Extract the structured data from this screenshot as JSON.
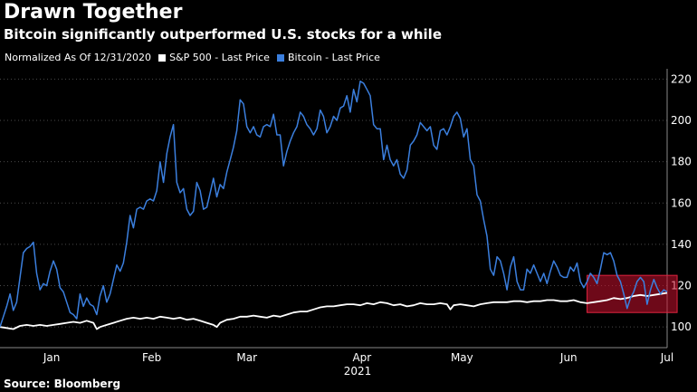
{
  "header": {
    "title": "Drawn Together",
    "subtitle": "Bitcoin significantly outperformed U.S. stocks for a while"
  },
  "legend": {
    "note": "Normalized As Of 12/31/2020",
    "items": [
      {
        "label": "S&P 500 - Last Price",
        "color": "#ffffff"
      },
      {
        "label": "Bitcoin - Last Price",
        "color": "#3b7fde"
      }
    ]
  },
  "footer": {
    "source": "Source: Bloomberg"
  },
  "chart_data": {
    "type": "line",
    "title": "Drawn Together",
    "subtitle": "Bitcoin significantly outperformed U.S. stocks for a while",
    "xlabel": "2021",
    "ylabel": "",
    "ylim": [
      90,
      225
    ],
    "xlim": [
      0,
      200
    ],
    "y_ticks": [
      100,
      120,
      140,
      160,
      180,
      200,
      220
    ],
    "x_ticks": [
      {
        "x": 15.5,
        "label": "Jan"
      },
      {
        "x": 45.5,
        "label": "Feb"
      },
      {
        "x": 74,
        "label": "Mar"
      },
      {
        "x": 108.5,
        "label": "Apr"
      },
      {
        "x": 138.5,
        "label": "May"
      },
      {
        "x": 170.5,
        "label": "Jun"
      },
      {
        "x": 200,
        "label": "Jul"
      }
    ],
    "x_group_label": "2021",
    "grid": "horizontal dotted",
    "highlight": {
      "x_start": 176,
      "x_end": 203,
      "y_start": 107,
      "y_end": 125,
      "color": "#c8102e"
    },
    "series": [
      {
        "name": "S&P 500 - Last Price",
        "color": "#ffffff",
        "points": [
          [
            0,
            100
          ],
          [
            2,
            99.5
          ],
          [
            4,
            99
          ],
          [
            6,
            100.5
          ],
          [
            8,
            101
          ],
          [
            10,
            100.5
          ],
          [
            12,
            101
          ],
          [
            14,
            100.5
          ],
          [
            16,
            101
          ],
          [
            18,
            101.5
          ],
          [
            20,
            102
          ],
          [
            22,
            102.5
          ],
          [
            24,
            102
          ],
          [
            26,
            103
          ],
          [
            28,
            102
          ],
          [
            29,
            99
          ],
          [
            30,
            100
          ],
          [
            32,
            101
          ],
          [
            34,
            102
          ],
          [
            36,
            103
          ],
          [
            38,
            104
          ],
          [
            40,
            104.5
          ],
          [
            42,
            104
          ],
          [
            44,
            104.5
          ],
          [
            46,
            104
          ],
          [
            48,
            105
          ],
          [
            50,
            104.5
          ],
          [
            52,
            104
          ],
          [
            54,
            104.5
          ],
          [
            56,
            103.5
          ],
          [
            58,
            104
          ],
          [
            60,
            103
          ],
          [
            62,
            102
          ],
          [
            64,
            101
          ],
          [
            65,
            100
          ],
          [
            66,
            102
          ],
          [
            68,
            103.5
          ],
          [
            70,
            104
          ],
          [
            72,
            105
          ],
          [
            74,
            105
          ],
          [
            76,
            105.5
          ],
          [
            78,
            105
          ],
          [
            80,
            104.5
          ],
          [
            82,
            105.5
          ],
          [
            84,
            105
          ],
          [
            86,
            106
          ],
          [
            88,
            107
          ],
          [
            90,
            107.5
          ],
          [
            92,
            107.5
          ],
          [
            94,
            108.5
          ],
          [
            96,
            109.5
          ],
          [
            98,
            110
          ],
          [
            100,
            110
          ],
          [
            102,
            110.5
          ],
          [
            104,
            111
          ],
          [
            106,
            111
          ],
          [
            108,
            110.5
          ],
          [
            110,
            111.5
          ],
          [
            112,
            111
          ],
          [
            114,
            112
          ],
          [
            116,
            111.5
          ],
          [
            118,
            110.5
          ],
          [
            120,
            111
          ],
          [
            122,
            110
          ],
          [
            124,
            110.5
          ],
          [
            126,
            111.5
          ],
          [
            128,
            111
          ],
          [
            130,
            111
          ],
          [
            132,
            111.5
          ],
          [
            134,
            111
          ],
          [
            135,
            108.5
          ],
          [
            136,
            110.5
          ],
          [
            138,
            111
          ],
          [
            140,
            110.5
          ],
          [
            142,
            110
          ],
          [
            144,
            111
          ],
          [
            146,
            111.5
          ],
          [
            148,
            112
          ],
          [
            150,
            112
          ],
          [
            152,
            112
          ],
          [
            154,
            112.5
          ],
          [
            156,
            112.5
          ],
          [
            158,
            112
          ],
          [
            160,
            112.5
          ],
          [
            162,
            112.5
          ],
          [
            164,
            113
          ],
          [
            166,
            113
          ],
          [
            168,
            112.5
          ],
          [
            170,
            112.5
          ],
          [
            172,
            113
          ],
          [
            174,
            112
          ],
          [
            176,
            111.5
          ],
          [
            178,
            112
          ],
          [
            180,
            112.5
          ],
          [
            182,
            113
          ],
          [
            184,
            114
          ],
          [
            186,
            113.5
          ],
          [
            188,
            114
          ],
          [
            190,
            115
          ],
          [
            192,
            115.5
          ],
          [
            194,
            115
          ],
          [
            196,
            115.5
          ],
          [
            198,
            116
          ],
          [
            200,
            116.5
          ]
        ]
      },
      {
        "name": "Bitcoin - Last Price",
        "color": "#3b7fde",
        "points": [
          [
            0,
            100
          ],
          [
            1,
            105
          ],
          [
            2,
            110
          ],
          [
            3,
            116
          ],
          [
            4,
            108
          ],
          [
            5,
            112
          ],
          [
            6,
            124
          ],
          [
            7,
            136
          ],
          [
            8,
            138
          ],
          [
            9,
            139
          ],
          [
            10,
            141
          ],
          [
            11,
            126
          ],
          [
            12,
            118
          ],
          [
            13,
            121
          ],
          [
            14,
            120
          ],
          [
            15,
            127
          ],
          [
            16,
            132
          ],
          [
            17,
            128
          ],
          [
            18,
            119
          ],
          [
            19,
            117
          ],
          [
            20,
            112
          ],
          [
            21,
            107
          ],
          [
            22,
            106
          ],
          [
            23,
            104
          ],
          [
            24,
            116
          ],
          [
            25,
            110
          ],
          [
            26,
            114
          ],
          [
            27,
            111
          ],
          [
            28,
            110
          ],
          [
            29,
            106
          ],
          [
            30,
            115
          ],
          [
            31,
            120
          ],
          [
            32,
            112
          ],
          [
            33,
            116
          ],
          [
            34,
            123
          ],
          [
            35,
            130
          ],
          [
            36,
            127
          ],
          [
            37,
            131
          ],
          [
            38,
            141
          ],
          [
            39,
            154
          ],
          [
            40,
            148
          ],
          [
            41,
            157
          ],
          [
            42,
            158
          ],
          [
            43,
            157
          ],
          [
            44,
            161
          ],
          [
            45,
            162
          ],
          [
            46,
            161
          ],
          [
            47,
            166
          ],
          [
            48,
            180
          ],
          [
            49,
            170
          ],
          [
            50,
            184
          ],
          [
            51,
            192
          ],
          [
            52,
            198
          ],
          [
            53,
            170
          ],
          [
            54,
            165
          ],
          [
            55,
            167
          ],
          [
            56,
            157
          ],
          [
            57,
            154
          ],
          [
            58,
            156
          ],
          [
            59,
            170
          ],
          [
            60,
            166
          ],
          [
            61,
            157
          ],
          [
            62,
            158
          ],
          [
            63,
            165
          ],
          [
            64,
            172
          ],
          [
            65,
            163
          ],
          [
            66,
            169
          ],
          [
            67,
            167
          ],
          [
            68,
            175
          ],
          [
            69,
            181
          ],
          [
            70,
            187
          ],
          [
            71,
            195
          ],
          [
            72,
            210
          ],
          [
            73,
            208
          ],
          [
            74,
            197
          ],
          [
            75,
            194
          ],
          [
            76,
            197
          ],
          [
            77,
            193
          ],
          [
            78,
            192
          ],
          [
            79,
            197
          ],
          [
            80,
            198
          ],
          [
            81,
            197
          ],
          [
            82,
            203
          ],
          [
            83,
            193
          ],
          [
            84,
            193
          ],
          [
            85,
            178
          ],
          [
            86,
            185
          ],
          [
            87,
            190
          ],
          [
            88,
            194
          ],
          [
            89,
            197
          ],
          [
            90,
            204
          ],
          [
            91,
            202
          ],
          [
            92,
            198
          ],
          [
            93,
            196
          ],
          [
            94,
            193
          ],
          [
            95,
            196
          ],
          [
            96,
            205
          ],
          [
            97,
            202
          ],
          [
            98,
            194
          ],
          [
            99,
            197
          ],
          [
            100,
            202
          ],
          [
            101,
            200
          ],
          [
            102,
            206
          ],
          [
            103,
            207
          ],
          [
            104,
            212
          ],
          [
            105,
            204
          ],
          [
            106,
            215
          ],
          [
            107,
            209
          ],
          [
            108,
            219
          ],
          [
            109,
            218
          ],
          [
            110,
            215
          ],
          [
            111,
            212
          ],
          [
            112,
            198
          ],
          [
            113,
            196
          ],
          [
            114,
            196
          ],
          [
            115,
            181
          ],
          [
            116,
            188
          ],
          [
            117,
            181
          ],
          [
            118,
            178
          ],
          [
            119,
            181
          ],
          [
            120,
            174
          ],
          [
            121,
            172
          ],
          [
            122,
            176
          ],
          [
            123,
            188
          ],
          [
            124,
            190
          ],
          [
            125,
            193
          ],
          [
            126,
            199
          ],
          [
            127,
            197
          ],
          [
            128,
            195
          ],
          [
            129,
            197
          ],
          [
            130,
            188
          ],
          [
            131,
            186
          ],
          [
            132,
            195
          ],
          [
            133,
            196
          ],
          [
            134,
            193
          ],
          [
            135,
            197
          ],
          [
            136,
            202
          ],
          [
            137,
            204
          ],
          [
            138,
            201
          ],
          [
            139,
            192
          ],
          [
            140,
            196
          ],
          [
            141,
            181
          ],
          [
            142,
            178
          ],
          [
            143,
            164
          ],
          [
            144,
            161
          ],
          [
            145,
            152
          ],
          [
            146,
            144
          ],
          [
            147,
            128
          ],
          [
            148,
            125
          ],
          [
            149,
            134
          ],
          [
            150,
            132
          ],
          [
            151,
            126
          ],
          [
            152,
            118
          ],
          [
            153,
            129
          ],
          [
            154,
            134
          ],
          [
            155,
            122
          ],
          [
            156,
            118
          ],
          [
            157,
            118
          ],
          [
            158,
            128
          ],
          [
            159,
            126
          ],
          [
            160,
            130
          ],
          [
            161,
            126
          ],
          [
            162,
            122
          ],
          [
            163,
            126
          ],
          [
            164,
            121
          ],
          [
            165,
            127
          ],
          [
            166,
            132
          ],
          [
            167,
            129
          ],
          [
            168,
            125
          ],
          [
            169,
            124
          ],
          [
            170,
            124
          ],
          [
            171,
            129
          ],
          [
            172,
            127
          ],
          [
            173,
            131
          ],
          [
            174,
            122
          ],
          [
            175,
            119
          ],
          [
            176,
            122
          ],
          [
            177,
            126
          ],
          [
            178,
            124
          ],
          [
            179,
            121
          ],
          [
            180,
            128
          ],
          [
            181,
            136
          ],
          [
            182,
            135
          ],
          [
            183,
            136
          ],
          [
            184,
            132
          ],
          [
            185,
            125
          ],
          [
            186,
            122
          ],
          [
            187,
            116
          ],
          [
            188,
            109
          ],
          [
            189,
            114
          ],
          [
            190,
            117
          ],
          [
            191,
            122
          ],
          [
            192,
            124
          ],
          [
            193,
            122
          ],
          [
            194,
            111
          ],
          [
            195,
            118
          ],
          [
            196,
            123
          ],
          [
            197,
            119
          ],
          [
            198,
            116
          ],
          [
            199,
            118
          ],
          [
            200,
            117
          ]
        ]
      }
    ]
  }
}
